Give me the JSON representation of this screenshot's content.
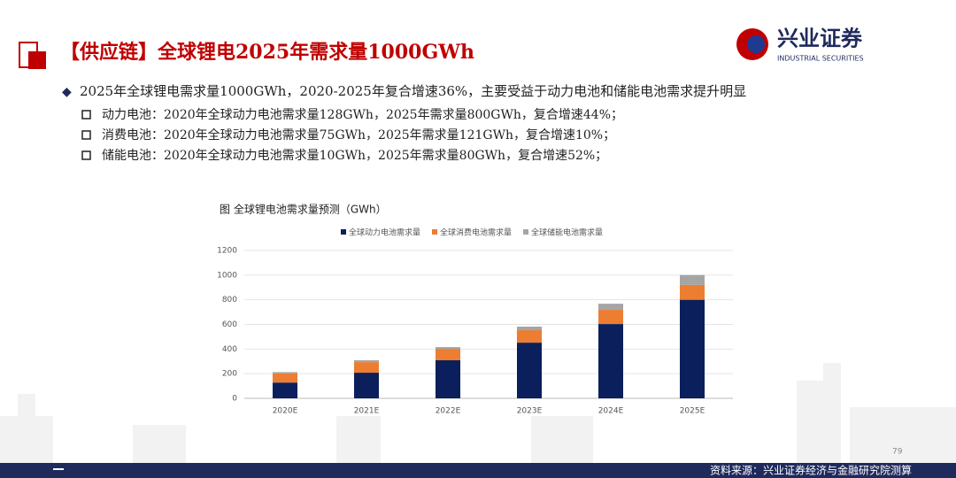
{
  "header": {
    "title": "【供应链】全球锂电2025年需求量1000GWh",
    "logo_name": "兴业证券",
    "logo_en": "INDUSTRIAL SECURITIES"
  },
  "bullets": {
    "main": "2025年全球锂电需求量1000GWh，2020-2025年复合增速36%，主要受益于动力电池和储能电池需求提升明显",
    "items": [
      "动力电池：2020年全球动力电池需求量128GWh，2025年需求量800GWh，复合增速44%；",
      "消费电池：2020年全球动力电池需求量75GWh，2025年需求量121GWh，复合增速10%；",
      "储能电池：2020年全球动力电池需求量10GWh，2025年需求量80GWh，复合增速52%；"
    ]
  },
  "chart_data": {
    "type": "stacked_bar",
    "title": "图 全球锂电池需求量预测（GWh）",
    "categories": [
      "2020E",
      "2021E",
      "2022E",
      "2023E",
      "2024E",
      "2025E"
    ],
    "series": [
      {
        "name": "全球动力电池需求量",
        "color": "#0b1f5c",
        "values": [
          128,
          208,
          309,
          452,
          603,
          800
        ]
      },
      {
        "name": "全球消费电池需求量",
        "color": "#ed7d31",
        "values": [
          75,
          86,
          93,
          101,
          115,
          121
        ]
      },
      {
        "name": "全球储能电池需求量",
        "color": "#a5a5a5",
        "values": [
          10,
          15,
          14,
          29,
          50,
          80
        ]
      }
    ],
    "ylim": [
      0,
      1200
    ],
    "yticks": [
      0,
      200,
      400,
      600,
      800,
      1000,
      1200
    ],
    "grid": true,
    "legend": "top"
  },
  "footer": {
    "page": "79",
    "source": "资料来源：兴业证券经济与金融研究院测算"
  }
}
